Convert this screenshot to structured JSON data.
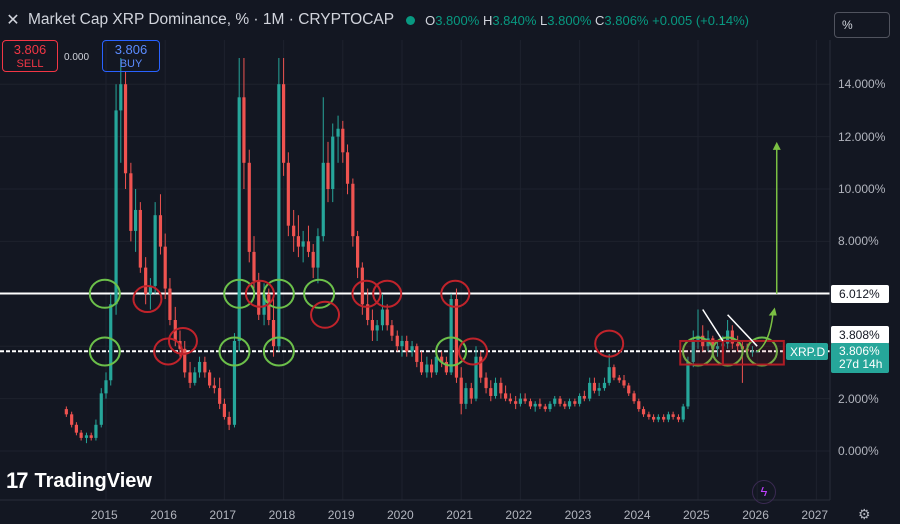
{
  "header": {
    "close_icon": "close-icon",
    "title": "Market Cap XRP Dominance, % · 1M · CRYPTOCAP",
    "status_color": "#089981",
    "o_key": "O",
    "o_val": "3.800%",
    "h_key": "H",
    "h_val": "3.840%",
    "l_key": "L",
    "l_val": "3.800%",
    "c_key": "C",
    "c_val": "3.806%",
    "change": "+0.005 (+0.14%)"
  },
  "scale_button": "%",
  "trade": {
    "sell_price": "3.806",
    "sell_label": "SELL",
    "spread": "0.000",
    "buy_price": "3.806",
    "buy_label": "BUY"
  },
  "branding": {
    "logo_mark": "17",
    "logo_text": "TradingView"
  },
  "price_labels": {
    "line_high": "6.012%",
    "line_low": "3.808%",
    "symbol": "XRP.D",
    "current": "3.806%",
    "countdown": "27d 14h"
  },
  "icons": {
    "flash": "lightning-icon",
    "settings": "gear-icon"
  },
  "chart_data": {
    "type": "candlestick",
    "title": "Market Cap XRP Dominance, %",
    "interval": "1M",
    "ylabel": "",
    "y_unit": "%",
    "ylim": [
      -0.5,
      15
    ],
    "y_ticks": [
      "14.000%",
      "12.000%",
      "10.000%",
      "8.000%",
      "6.000%",
      "4.000%",
      "2.000%",
      "0.000%"
    ],
    "x_ticks": [
      "2015",
      "2016",
      "2017",
      "2018",
      "2019",
      "2020",
      "2021",
      "2022",
      "2023",
      "2024",
      "2025",
      "2026",
      "2027"
    ],
    "x_range": [
      2014.2,
      2027.2
    ],
    "horizontal_lines": [
      6.012,
      3.808
    ],
    "last_value": 3.806,
    "colors": {
      "up": "#26a69a",
      "down": "#ef5350",
      "background": "#131722"
    },
    "series": [
      {
        "t": 2014.33,
        "o": 1.6,
        "h": 1.7,
        "l": 1.3,
        "c": 1.4
      },
      {
        "t": 2014.42,
        "o": 1.4,
        "h": 1.5,
        "l": 0.9,
        "c": 1.0
      },
      {
        "t": 2014.5,
        "o": 1.0,
        "h": 1.1,
        "l": 0.6,
        "c": 0.7
      },
      {
        "t": 2014.58,
        "o": 0.7,
        "h": 0.8,
        "l": 0.4,
        "c": 0.5
      },
      {
        "t": 2014.67,
        "o": 0.5,
        "h": 0.7,
        "l": 0.3,
        "c": 0.6
      },
      {
        "t": 2014.75,
        "o": 0.6,
        "h": 0.7,
        "l": 0.4,
        "c": 0.5
      },
      {
        "t": 2014.83,
        "o": 0.5,
        "h": 1.2,
        "l": 0.4,
        "c": 1.0
      },
      {
        "t": 2014.92,
        "o": 1.0,
        "h": 2.4,
        "l": 0.9,
        "c": 2.2
      },
      {
        "t": 2015.0,
        "o": 2.2,
        "h": 3.0,
        "l": 2.0,
        "c": 2.7
      },
      {
        "t": 2015.08,
        "o": 2.7,
        "h": 6.0,
        "l": 2.5,
        "c": 5.6
      },
      {
        "t": 2015.17,
        "o": 5.6,
        "h": 14.0,
        "l": 5.2,
        "c": 13.0
      },
      {
        "t": 2015.25,
        "o": 13.0,
        "h": 15.0,
        "l": 11.0,
        "c": 14.0
      },
      {
        "t": 2015.33,
        "o": 14.0,
        "h": 14.5,
        "l": 10.0,
        "c": 10.6
      },
      {
        "t": 2015.42,
        "o": 10.6,
        "h": 11.0,
        "l": 8.0,
        "c": 8.4
      },
      {
        "t": 2015.5,
        "o": 8.4,
        "h": 10.0,
        "l": 7.6,
        "c": 9.2
      },
      {
        "t": 2015.58,
        "o": 9.2,
        "h": 9.5,
        "l": 6.8,
        "c": 7.0
      },
      {
        "t": 2015.67,
        "o": 7.0,
        "h": 7.4,
        "l": 5.6,
        "c": 6.0
      },
      {
        "t": 2015.75,
        "o": 6.0,
        "h": 6.6,
        "l": 5.4,
        "c": 6.3
      },
      {
        "t": 2015.83,
        "o": 6.3,
        "h": 9.5,
        "l": 6.0,
        "c": 9.0
      },
      {
        "t": 2015.92,
        "o": 9.0,
        "h": 9.8,
        "l": 7.5,
        "c": 7.8
      },
      {
        "t": 2016.0,
        "o": 7.8,
        "h": 8.3,
        "l": 5.8,
        "c": 6.2
      },
      {
        "t": 2016.08,
        "o": 6.2,
        "h": 6.6,
        "l": 4.8,
        "c": 5.0
      },
      {
        "t": 2016.17,
        "o": 5.0,
        "h": 5.5,
        "l": 4.0,
        "c": 4.2
      },
      {
        "t": 2016.25,
        "o": 4.2,
        "h": 4.6,
        "l": 3.6,
        "c": 3.9
      },
      {
        "t": 2016.33,
        "o": 3.9,
        "h": 4.2,
        "l": 2.8,
        "c": 3.0
      },
      {
        "t": 2016.42,
        "o": 3.0,
        "h": 3.4,
        "l": 2.4,
        "c": 2.6
      },
      {
        "t": 2016.5,
        "o": 2.6,
        "h": 3.2,
        "l": 2.5,
        "c": 3.0
      },
      {
        "t": 2016.58,
        "o": 3.0,
        "h": 3.6,
        "l": 2.8,
        "c": 3.4
      },
      {
        "t": 2016.67,
        "o": 3.4,
        "h": 3.6,
        "l": 2.8,
        "c": 3.0
      },
      {
        "t": 2016.75,
        "o": 3.0,
        "h": 3.1,
        "l": 2.4,
        "c": 2.5
      },
      {
        "t": 2016.83,
        "o": 2.5,
        "h": 2.8,
        "l": 2.2,
        "c": 2.4
      },
      {
        "t": 2016.92,
        "o": 2.4,
        "h": 2.8,
        "l": 1.6,
        "c": 1.8
      },
      {
        "t": 2017.0,
        "o": 1.8,
        "h": 2.0,
        "l": 1.2,
        "c": 1.3
      },
      {
        "t": 2017.08,
        "o": 1.3,
        "h": 1.5,
        "l": 0.8,
        "c": 1.0
      },
      {
        "t": 2017.17,
        "o": 1.0,
        "h": 4.5,
        "l": 0.9,
        "c": 4.2
      },
      {
        "t": 2017.25,
        "o": 4.2,
        "h": 15.0,
        "l": 3.8,
        "c": 13.5
      },
      {
        "t": 2017.33,
        "o": 13.5,
        "h": 15.0,
        "l": 10.0,
        "c": 11.0
      },
      {
        "t": 2017.42,
        "o": 11.0,
        "h": 11.5,
        "l": 7.2,
        "c": 7.6
      },
      {
        "t": 2017.5,
        "o": 7.6,
        "h": 8.2,
        "l": 6.2,
        "c": 6.5
      },
      {
        "t": 2017.58,
        "o": 6.5,
        "h": 6.8,
        "l": 5.0,
        "c": 5.2
      },
      {
        "t": 2017.67,
        "o": 5.2,
        "h": 6.4,
        "l": 4.8,
        "c": 6.0
      },
      {
        "t": 2017.75,
        "o": 6.0,
        "h": 6.2,
        "l": 4.8,
        "c": 5.0
      },
      {
        "t": 2017.83,
        "o": 5.0,
        "h": 5.8,
        "l": 3.6,
        "c": 4.0
      },
      {
        "t": 2017.92,
        "o": 4.0,
        "h": 15.0,
        "l": 3.8,
        "c": 14.0
      },
      {
        "t": 2018.0,
        "o": 14.0,
        "h": 15.0,
        "l": 10.5,
        "c": 11.0
      },
      {
        "t": 2018.08,
        "o": 11.0,
        "h": 11.4,
        "l": 8.2,
        "c": 8.6
      },
      {
        "t": 2018.17,
        "o": 8.6,
        "h": 9.2,
        "l": 7.6,
        "c": 8.2
      },
      {
        "t": 2018.25,
        "o": 8.2,
        "h": 9.0,
        "l": 7.4,
        "c": 7.8
      },
      {
        "t": 2018.33,
        "o": 7.8,
        "h": 8.4,
        "l": 7.2,
        "c": 8.0
      },
      {
        "t": 2018.42,
        "o": 8.0,
        "h": 8.6,
        "l": 7.4,
        "c": 7.6
      },
      {
        "t": 2018.5,
        "o": 7.6,
        "h": 7.9,
        "l": 6.6,
        "c": 7.0
      },
      {
        "t": 2018.58,
        "o": 7.0,
        "h": 8.5,
        "l": 6.4,
        "c": 8.2
      },
      {
        "t": 2018.67,
        "o": 8.2,
        "h": 13.5,
        "l": 8.0,
        "c": 11.0
      },
      {
        "t": 2018.75,
        "o": 11.0,
        "h": 11.8,
        "l": 9.5,
        "c": 10.0
      },
      {
        "t": 2018.83,
        "o": 10.0,
        "h": 12.5,
        "l": 9.5,
        "c": 12.0
      },
      {
        "t": 2018.92,
        "o": 12.0,
        "h": 12.8,
        "l": 11.0,
        "c": 12.3
      },
      {
        "t": 2019.0,
        "o": 12.3,
        "h": 12.6,
        "l": 11.0,
        "c": 11.4
      },
      {
        "t": 2019.08,
        "o": 11.4,
        "h": 11.7,
        "l": 9.8,
        "c": 10.2
      },
      {
        "t": 2019.17,
        "o": 10.2,
        "h": 10.4,
        "l": 7.8,
        "c": 8.2
      },
      {
        "t": 2019.25,
        "o": 8.2,
        "h": 8.4,
        "l": 6.6,
        "c": 7.0
      },
      {
        "t": 2019.33,
        "o": 7.0,
        "h": 7.2,
        "l": 5.2,
        "c": 5.6
      },
      {
        "t": 2019.42,
        "o": 5.6,
        "h": 6.2,
        "l": 4.8,
        "c": 5.0
      },
      {
        "t": 2019.5,
        "o": 5.0,
        "h": 5.4,
        "l": 4.2,
        "c": 4.6
      },
      {
        "t": 2019.58,
        "o": 4.6,
        "h": 5.0,
        "l": 4.2,
        "c": 4.8
      },
      {
        "t": 2019.67,
        "o": 4.8,
        "h": 6.0,
        "l": 4.6,
        "c": 5.4
      },
      {
        "t": 2019.75,
        "o": 5.4,
        "h": 5.6,
        "l": 4.6,
        "c": 4.8
      },
      {
        "t": 2019.83,
        "o": 4.8,
        "h": 5.0,
        "l": 4.2,
        "c": 4.4
      },
      {
        "t": 2019.92,
        "o": 4.4,
        "h": 4.6,
        "l": 3.8,
        "c": 4.0
      },
      {
        "t": 2020.0,
        "o": 4.0,
        "h": 4.4,
        "l": 3.6,
        "c": 4.2
      },
      {
        "t": 2020.08,
        "o": 4.2,
        "h": 4.4,
        "l": 3.6,
        "c": 3.8
      },
      {
        "t": 2020.17,
        "o": 3.8,
        "h": 4.2,
        "l": 3.6,
        "c": 4.0
      },
      {
        "t": 2020.25,
        "o": 4.0,
        "h": 4.1,
        "l": 3.2,
        "c": 3.4
      },
      {
        "t": 2020.33,
        "o": 3.4,
        "h": 3.8,
        "l": 2.9,
        "c": 3.0
      },
      {
        "t": 2020.42,
        "o": 3.0,
        "h": 3.6,
        "l": 2.8,
        "c": 3.3
      },
      {
        "t": 2020.5,
        "o": 3.3,
        "h": 3.5,
        "l": 2.8,
        "c": 3.0
      },
      {
        "t": 2020.58,
        "o": 3.0,
        "h": 3.8,
        "l": 2.9,
        "c": 3.6
      },
      {
        "t": 2020.67,
        "o": 3.6,
        "h": 3.8,
        "l": 3.2,
        "c": 3.4
      },
      {
        "t": 2020.75,
        "o": 3.4,
        "h": 3.6,
        "l": 2.9,
        "c": 3.0
      },
      {
        "t": 2020.83,
        "o": 3.0,
        "h": 6.0,
        "l": 2.9,
        "c": 5.8
      },
      {
        "t": 2020.92,
        "o": 5.8,
        "h": 6.2,
        "l": 2.6,
        "c": 2.8
      },
      {
        "t": 2021.0,
        "o": 2.8,
        "h": 3.2,
        "l": 1.4,
        "c": 1.8
      },
      {
        "t": 2021.08,
        "o": 1.8,
        "h": 2.6,
        "l": 1.6,
        "c": 2.4
      },
      {
        "t": 2021.17,
        "o": 2.4,
        "h": 2.6,
        "l": 1.8,
        "c": 2.0
      },
      {
        "t": 2021.25,
        "o": 2.0,
        "h": 4.0,
        "l": 1.9,
        "c": 3.6
      },
      {
        "t": 2021.33,
        "o": 3.6,
        "h": 3.8,
        "l": 2.6,
        "c": 2.8
      },
      {
        "t": 2021.42,
        "o": 2.8,
        "h": 3.0,
        "l": 2.2,
        "c": 2.4
      },
      {
        "t": 2021.5,
        "o": 2.4,
        "h": 2.7,
        "l": 1.9,
        "c": 2.1
      },
      {
        "t": 2021.58,
        "o": 2.1,
        "h": 2.8,
        "l": 2.0,
        "c": 2.6
      },
      {
        "t": 2021.67,
        "o": 2.6,
        "h": 2.8,
        "l": 2.0,
        "c": 2.2
      },
      {
        "t": 2021.75,
        "o": 2.2,
        "h": 2.5,
        "l": 1.9,
        "c": 2.0
      },
      {
        "t": 2021.83,
        "o": 2.0,
        "h": 2.2,
        "l": 1.8,
        "c": 1.9
      },
      {
        "t": 2021.92,
        "o": 1.9,
        "h": 2.1,
        "l": 1.6,
        "c": 1.8
      },
      {
        "t": 2022.0,
        "o": 1.8,
        "h": 2.2,
        "l": 1.7,
        "c": 2.0
      },
      {
        "t": 2022.08,
        "o": 2.0,
        "h": 2.2,
        "l": 1.8,
        "c": 1.9
      },
      {
        "t": 2022.17,
        "o": 1.9,
        "h": 2.0,
        "l": 1.6,
        "c": 1.7
      },
      {
        "t": 2022.25,
        "o": 1.7,
        "h": 1.9,
        "l": 1.5,
        "c": 1.8
      },
      {
        "t": 2022.33,
        "o": 1.8,
        "h": 2.0,
        "l": 1.6,
        "c": 1.7
      },
      {
        "t": 2022.42,
        "o": 1.7,
        "h": 1.8,
        "l": 1.5,
        "c": 1.6
      },
      {
        "t": 2022.5,
        "o": 1.6,
        "h": 1.9,
        "l": 1.5,
        "c": 1.8
      },
      {
        "t": 2022.58,
        "o": 1.8,
        "h": 2.1,
        "l": 1.7,
        "c": 2.0
      },
      {
        "t": 2022.67,
        "o": 2.0,
        "h": 2.1,
        "l": 1.7,
        "c": 1.8
      },
      {
        "t": 2022.75,
        "o": 1.8,
        "h": 1.9,
        "l": 1.6,
        "c": 1.7
      },
      {
        "t": 2022.83,
        "o": 1.7,
        "h": 2.0,
        "l": 1.6,
        "c": 1.9
      },
      {
        "t": 2022.92,
        "o": 1.9,
        "h": 2.0,
        "l": 1.7,
        "c": 1.8
      },
      {
        "t": 2023.0,
        "o": 1.8,
        "h": 2.2,
        "l": 1.7,
        "c": 2.1
      },
      {
        "t": 2023.08,
        "o": 2.1,
        "h": 2.3,
        "l": 1.9,
        "c": 2.0
      },
      {
        "t": 2023.17,
        "o": 2.0,
        "h": 2.8,
        "l": 1.9,
        "c": 2.6
      },
      {
        "t": 2023.25,
        "o": 2.6,
        "h": 2.8,
        "l": 2.2,
        "c": 2.3
      },
      {
        "t": 2023.33,
        "o": 2.3,
        "h": 2.6,
        "l": 2.1,
        "c": 2.4
      },
      {
        "t": 2023.42,
        "o": 2.4,
        "h": 2.8,
        "l": 2.3,
        "c": 2.6
      },
      {
        "t": 2023.5,
        "o": 2.6,
        "h": 3.7,
        "l": 2.5,
        "c": 3.2
      },
      {
        "t": 2023.58,
        "o": 3.2,
        "h": 3.3,
        "l": 2.7,
        "c": 2.8
      },
      {
        "t": 2023.67,
        "o": 2.8,
        "h": 2.9,
        "l": 2.6,
        "c": 2.7
      },
      {
        "t": 2023.75,
        "o": 2.7,
        "h": 2.9,
        "l": 2.4,
        "c": 2.5
      },
      {
        "t": 2023.83,
        "o": 2.5,
        "h": 2.6,
        "l": 2.1,
        "c": 2.2
      },
      {
        "t": 2023.92,
        "o": 2.2,
        "h": 2.3,
        "l": 1.8,
        "c": 1.9
      },
      {
        "t": 2024.0,
        "o": 1.9,
        "h": 2.0,
        "l": 1.5,
        "c": 1.6
      },
      {
        "t": 2024.08,
        "o": 1.6,
        "h": 1.7,
        "l": 1.3,
        "c": 1.4
      },
      {
        "t": 2024.17,
        "o": 1.4,
        "h": 1.5,
        "l": 1.2,
        "c": 1.3
      },
      {
        "t": 2024.25,
        "o": 1.3,
        "h": 1.4,
        "l": 1.1,
        "c": 1.2
      },
      {
        "t": 2024.33,
        "o": 1.2,
        "h": 1.4,
        "l": 1.1,
        "c": 1.3
      },
      {
        "t": 2024.42,
        "o": 1.3,
        "h": 1.4,
        "l": 1.1,
        "c": 1.2
      },
      {
        "t": 2024.5,
        "o": 1.2,
        "h": 1.5,
        "l": 1.1,
        "c": 1.4
      },
      {
        "t": 2024.58,
        "o": 1.4,
        "h": 1.5,
        "l": 1.2,
        "c": 1.3
      },
      {
        "t": 2024.67,
        "o": 1.3,
        "h": 1.4,
        "l": 1.1,
        "c": 1.2
      },
      {
        "t": 2024.75,
        "o": 1.2,
        "h": 1.8,
        "l": 1.1,
        "c": 1.7
      },
      {
        "t": 2024.83,
        "o": 1.7,
        "h": 3.6,
        "l": 1.6,
        "c": 3.4
      },
      {
        "t": 2024.92,
        "o": 3.4,
        "h": 4.6,
        "l": 3.2,
        "c": 4.2
      },
      {
        "t": 2025.0,
        "o": 4.2,
        "h": 5.4,
        "l": 3.9,
        "c": 4.4
      },
      {
        "t": 2025.08,
        "o": 4.4,
        "h": 4.8,
        "l": 3.8,
        "c": 4.0
      },
      {
        "t": 2025.17,
        "o": 4.0,
        "h": 4.6,
        "l": 3.8,
        "c": 4.3
      },
      {
        "t": 2025.25,
        "o": 4.3,
        "h": 4.4,
        "l": 3.7,
        "c": 3.9
      },
      {
        "t": 2025.33,
        "o": 3.9,
        "h": 4.2,
        "l": 3.6,
        "c": 4.0
      },
      {
        "t": 2025.42,
        "o": 4.0,
        "h": 4.4,
        "l": 3.7,
        "c": 4.1
      },
      {
        "t": 2025.5,
        "o": 4.1,
        "h": 5.0,
        "l": 3.9,
        "c": 4.6
      },
      {
        "t": 2025.58,
        "o": 4.6,
        "h": 4.8,
        "l": 3.9,
        "c": 4.1
      },
      {
        "t": 2025.67,
        "o": 4.1,
        "h": 4.4,
        "l": 3.8,
        "c": 4.0
      },
      {
        "t": 2025.75,
        "o": 4.0,
        "h": 4.2,
        "l": 2.6,
        "c": 3.9
      },
      {
        "t": 2025.83,
        "o": 3.9,
        "h": 4.1,
        "l": 3.6,
        "c": 3.8
      },
      {
        "t": 2025.92,
        "o": 3.8,
        "h": 4.0,
        "l": 3.6,
        "c": 3.8
      },
      {
        "t": 2026.0,
        "o": 3.8,
        "h": 3.84,
        "l": 3.8,
        "c": 3.806
      }
    ],
    "annotations": {
      "green_circles": [
        [
          2014.98,
          6.0
        ],
        [
          2014.98,
          3.8
        ],
        [
          2017.25,
          6.0
        ],
        [
          2017.17,
          3.8
        ],
        [
          2017.92,
          6.0
        ],
        [
          2017.92,
          3.8
        ],
        [
          2018.6,
          6.0
        ],
        [
          2020.83,
          3.8
        ],
        [
          2025.0,
          3.8
        ],
        [
          2025.5,
          3.8
        ],
        [
          2026.08,
          3.8
        ]
      ],
      "red_circles": [
        [
          2015.7,
          5.8
        ],
        [
          2016.05,
          3.8
        ],
        [
          2016.3,
          4.2
        ],
        [
          2017.6,
          6.0
        ],
        [
          2018.7,
          5.2
        ],
        [
          2019.4,
          6.0
        ],
        [
          2019.75,
          6.0
        ],
        [
          2020.9,
          6.0
        ],
        [
          2021.2,
          3.8
        ],
        [
          2023.5,
          4.1
        ]
      ],
      "red_boxes": [
        [
          2024.7,
          2025.42,
          4.2,
          3.3
        ],
        [
          2025.42,
          2026.45,
          4.2,
          3.3
        ]
      ],
      "white_lines": [
        [
          2025.08,
          5.4,
          2025.42,
          4.2
        ],
        [
          2025.5,
          5.2,
          2026.0,
          4.0
        ]
      ],
      "green_arrow": [
        2026.33,
        6.0,
        2026.33,
        11.8
      ],
      "green_curve": [
        2026.0,
        3.8,
        2026.33,
        5.4
      ]
    }
  }
}
